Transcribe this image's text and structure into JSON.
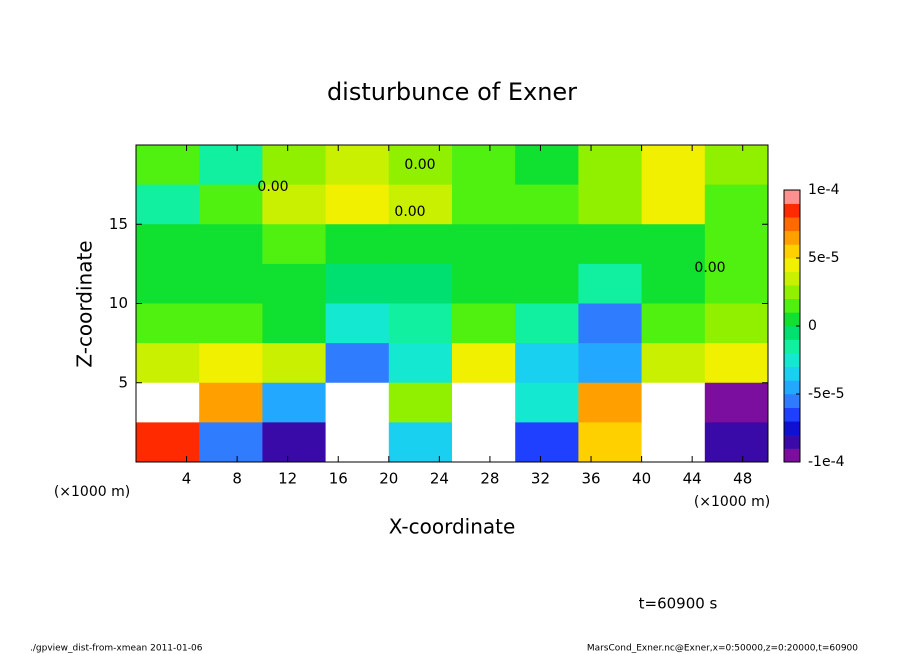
{
  "chart_data": {
    "type": "contour",
    "title": "disturbunce of Exner",
    "x_label": "X-coordinate",
    "y_label": "Z-coordinate",
    "x_unit_label": "(×1000 m)",
    "y_unit_label": "(×1000 m)",
    "time_label": "t=60900 s",
    "footer_left": "./gpview_dist-from-xmean  2011-01-06",
    "footer_right": "MarsCond_Exner.nc@Exner,x=0:50000,z=0:20000,t=60900",
    "contour_labels": [
      "0.00",
      "0.00",
      "0.00",
      "0.00"
    ],
    "xlim": [
      0,
      50
    ],
    "xticks": [
      4,
      8,
      12,
      16,
      20,
      24,
      28,
      32,
      36,
      40,
      44,
      48
    ],
    "ylim": [
      0,
      20
    ],
    "yticks": [
      5,
      10,
      15
    ],
    "x": [
      2.5,
      7.5,
      12.5,
      17.5,
      22.5,
      27.5,
      32.5,
      37.5,
      42.5,
      47.5
    ],
    "y": [
      18.75,
      16.25,
      13.75,
      11.25,
      8.75,
      6.25,
      3.75,
      1.25
    ],
    "z": [
      [
        1e-05,
        -2e-05,
        2e-05,
        3e-05,
        2e-05,
        1e-05,
        0,
        2e-05,
        4e-05,
        2e-05
      ],
      [
        -2e-05,
        1e-05,
        3e-05,
        4e-05,
        3e-05,
        1e-05,
        1e-05,
        2e-05,
        4e-05,
        1e-05
      ],
      [
        0,
        0,
        1e-05,
        0,
        0,
        0,
        0,
        0,
        0,
        1e-05
      ],
      [
        0,
        0,
        0,
        -1e-05,
        -5e-06,
        0,
        0,
        -2e-05,
        0,
        1e-05
      ],
      [
        1e-05,
        1e-05,
        0,
        -3e-05,
        -2e-05,
        1e-05,
        -2e-05,
        -6e-05,
        1e-05,
        2e-05
      ],
      [
        3e-05,
        4e-05,
        3e-05,
        -6e-05,
        -3e-05,
        4e-05,
        -4e-05,
        -5e-05,
        3e-05,
        4e-05
      ],
      [
        0.00012,
        6e-05,
        -5e-05,
        0.00012,
        2e-05,
        0.00012,
        -3e-05,
        6e-05,
        0.00012,
        -0.0001
      ],
      [
        8e-05,
        -6e-05,
        -8e-05,
        0.00012,
        -4e-05,
        0.00012,
        -7e-05,
        5e-05,
        0.00012,
        -8e-05
      ]
    ],
    "zlim": [
      -0.0001,
      0.0001
    ],
    "zticks": [
      {
        "value": 0.0001,
        "label": "1e-4"
      },
      {
        "value": 5e-05,
        "label": "5e-5"
      },
      0,
      {
        "value": -5e-05,
        "label": "-5e-5"
      },
      {
        "value": -0.0001,
        "label": "-1e-4"
      }
    ],
    "colorbar_colors": [
      "#7b0e9e",
      "#3a0aa8",
      "#1010d0",
      "#2040ff",
      "#2f7cff",
      "#23a8ff",
      "#1ad0f0",
      "#15e8d0",
      "#10f0a0",
      "#00e070",
      "#10e030",
      "#50f010",
      "#90f000",
      "#c8f000",
      "#f0f000",
      "#ffd000",
      "#ffa000",
      "#ff6a00",
      "#ff2a00",
      "#ff9090"
    ],
    "out_of_range_color": "#ffffff"
  }
}
